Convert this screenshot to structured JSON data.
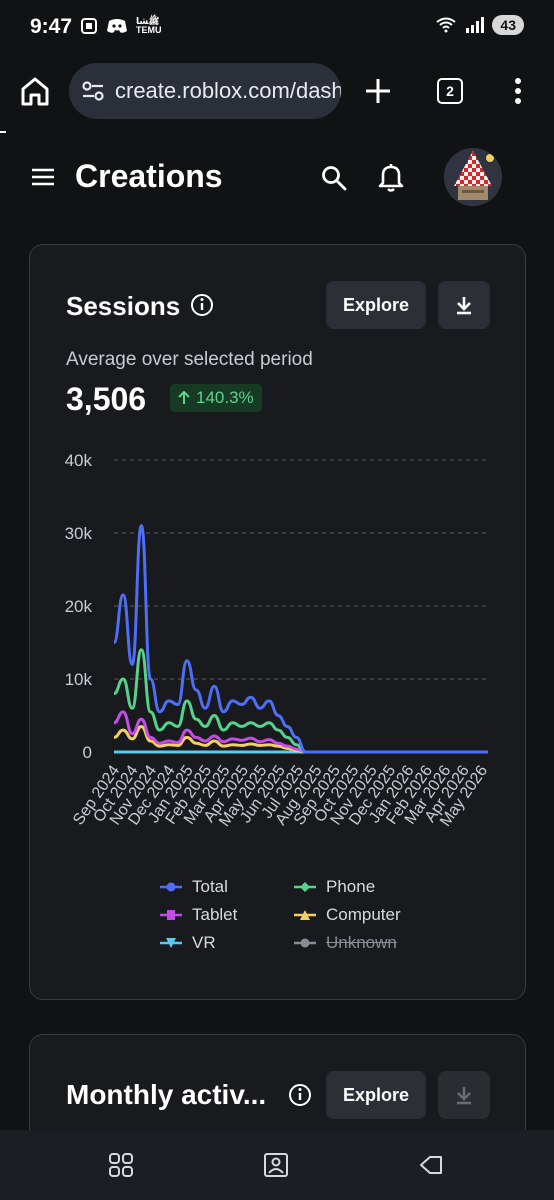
{
  "status_bar": {
    "time": "9:47",
    "left_icons": [
      "screenshot-icon",
      "discord-icon",
      "temu-icon"
    ],
    "temu_label": "ﷺﺸﺎ TEMU",
    "battery": "43"
  },
  "browser": {
    "url": "create.roblox.com/dashboard",
    "tab_count": "2"
  },
  "header": {
    "title": "Creations"
  },
  "sessions_card": {
    "title": "Sessions",
    "explore_label": "Explore",
    "avg_label": "Average over selected period",
    "avg_value": "3,506",
    "change": "140.3%",
    "change_direction": "up",
    "change_color": "#5fd38a"
  },
  "chart_data": {
    "type": "line",
    "y_ticks": [
      "40k",
      "30k",
      "20k",
      "10k",
      "0"
    ],
    "ylim": [
      0,
      40000
    ],
    "x_ticks": [
      "Sep 2024",
      "Oct 2024",
      "Nov 2024",
      "Dec 2024",
      "Jan 2025",
      "Feb 2025",
      "Mar 2025",
      "Apr 2025",
      "May 2025",
      "Jun 2025",
      "Jul 2025",
      "Aug 2025",
      "Sep 2025",
      "Oct 2025",
      "Nov 2025",
      "Dec 2025",
      "Jan 2026",
      "Feb 2026",
      "Mar 2026",
      "Apr 2026",
      "May 2026"
    ],
    "grid": true,
    "legend_position": "bottom",
    "series": [
      {
        "name": "Total",
        "color": "#4f6ef7",
        "marker": "circle",
        "values": [
          15000,
          21500,
          12000,
          31000,
          10000,
          5500,
          7000,
          6500,
          12500,
          8500,
          6000,
          9000,
          5500,
          7000,
          6500,
          7500,
          6000,
          7000,
          5000,
          3500,
          2000,
          0,
          0,
          0,
          0,
          0,
          0,
          0,
          0,
          0,
          0,
          0,
          0,
          0,
          0,
          0,
          0,
          0,
          0,
          0,
          0,
          0
        ]
      },
      {
        "name": "Phone",
        "color": "#55d38b",
        "marker": "diamond",
        "values": [
          8000,
          10000,
          6000,
          14000,
          5500,
          3000,
          4000,
          3500,
          7000,
          4500,
          3500,
          5000,
          3000,
          4000,
          3500,
          4000,
          3500,
          4000,
          3000,
          2000,
          1000,
          0,
          0,
          0,
          0,
          0,
          0,
          0,
          0,
          0,
          0,
          0,
          0,
          0,
          0,
          0,
          0,
          0,
          0,
          0,
          0,
          0
        ]
      },
      {
        "name": "Tablet",
        "color": "#c44dea",
        "marker": "square",
        "values": [
          4000,
          5500,
          2500,
          4500,
          2000,
          1200,
          1500,
          1300,
          3000,
          2000,
          1500,
          2200,
          1400,
          1800,
          1600,
          1900,
          1400,
          1700,
          1200,
          800,
          400,
          0,
          0,
          0,
          0,
          0,
          0,
          0,
          0,
          0,
          0,
          0,
          0,
          0,
          0,
          0,
          0,
          0,
          0,
          0,
          0,
          0
        ]
      },
      {
        "name": "Computer",
        "color": "#f5d061",
        "marker": "triangle",
        "values": [
          2000,
          3000,
          1800,
          3500,
          1500,
          800,
          1000,
          900,
          2000,
          1200,
          900,
          1500,
          800,
          1000,
          900,
          1100,
          900,
          1000,
          800,
          500,
          200,
          0,
          0,
          0,
          0,
          0,
          0,
          0,
          0,
          0,
          0,
          0,
          0,
          0,
          0,
          0,
          0,
          0,
          0,
          0,
          0,
          0
        ]
      },
      {
        "name": "VR",
        "color": "#5fc8e8",
        "marker": "triangle-down",
        "values": [
          0,
          0,
          0,
          0,
          0,
          0,
          0,
          0,
          0,
          0,
          0,
          0,
          0,
          0,
          0,
          0,
          0,
          0,
          0,
          0,
          0,
          0,
          0,
          0,
          0,
          0,
          0,
          0,
          0,
          0,
          0,
          0,
          0,
          0,
          0,
          0,
          0,
          0,
          0,
          0,
          0,
          0
        ]
      },
      {
        "name": "Unknown",
        "color": "#8a8c93",
        "marker": "circle",
        "disabled": true,
        "values": []
      }
    ]
  },
  "monthly_card": {
    "title": "Monthly activ...",
    "explore_label": "Explore"
  },
  "nav": {
    "icons": [
      "recent-apps-icon",
      "home-icon",
      "back-icon"
    ]
  }
}
